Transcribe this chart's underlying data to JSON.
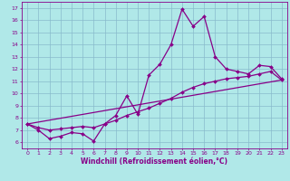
{
  "xlabel": "Windchill (Refroidissement éolien,°C)",
  "bg_color": "#b0e8e8",
  "grid_color": "#88bbcc",
  "line_color": "#880088",
  "spine_color": "#880088",
  "xlim": [
    -0.5,
    23.5
  ],
  "ylim": [
    5.5,
    17.5
  ],
  "xticks": [
    0,
    1,
    2,
    3,
    4,
    5,
    6,
    7,
    8,
    9,
    10,
    11,
    12,
    13,
    14,
    15,
    16,
    17,
    18,
    19,
    20,
    21,
    22,
    23
  ],
  "yticks": [
    6,
    7,
    8,
    9,
    10,
    11,
    12,
    13,
    14,
    15,
    16,
    17
  ],
  "line1_x": [
    0,
    1,
    2,
    3,
    4,
    5,
    6,
    7,
    8,
    9,
    10,
    11,
    12,
    13,
    14,
    15,
    16,
    17,
    18,
    19,
    20,
    21,
    22,
    23
  ],
  "line1_y": [
    7.5,
    7.0,
    6.3,
    6.5,
    6.8,
    6.7,
    6.1,
    7.5,
    8.2,
    9.8,
    8.3,
    11.5,
    12.4,
    14.0,
    16.9,
    15.5,
    16.3,
    13.0,
    12.0,
    11.8,
    11.6,
    12.3,
    12.2,
    11.2
  ],
  "line2_x": [
    0,
    23
  ],
  "line2_y": [
    7.5,
    11.1
  ],
  "line3_x": [
    0,
    1,
    2,
    3,
    4,
    5,
    6,
    7,
    8,
    9,
    10,
    11,
    12,
    13,
    14,
    15,
    16,
    17,
    18,
    19,
    20,
    21,
    22,
    23
  ],
  "line3_y": [
    7.5,
    7.2,
    7.0,
    7.1,
    7.2,
    7.3,
    7.2,
    7.5,
    7.8,
    8.2,
    8.5,
    8.8,
    9.2,
    9.6,
    10.1,
    10.5,
    10.8,
    11.0,
    11.2,
    11.3,
    11.4,
    11.6,
    11.8,
    11.1
  ],
  "marker": "D",
  "markersize": 2.0,
  "linewidth": 0.9,
  "tick_fontsize": 4.5,
  "label_fontsize": 5.5
}
